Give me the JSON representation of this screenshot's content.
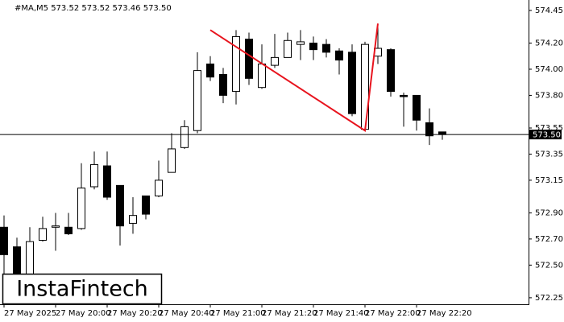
{
  "chart_data": {
    "type": "candlestick",
    "header": "#MA,M5  573.52 573.52 573.46 573.50",
    "logo": "InstaFintech",
    "categories": [
      "27 May 2025",
      null,
      null,
      null,
      "27 May 20:00",
      null,
      null,
      null,
      "27 May 20:20",
      null,
      null,
      null,
      "27 May 20:40",
      null,
      null,
      null,
      "27 May 21:00",
      null,
      null,
      null,
      "27 May 21:20",
      null,
      null,
      null,
      "27 May 21:40",
      null,
      null,
      null,
      "27 May 22:00",
      null,
      null,
      null,
      "27 May 22:20",
      null,
      null
    ],
    "open": [
      572.79,
      572.64,
      572.4,
      572.69,
      572.79,
      572.79,
      572.78,
      573.1,
      573.26,
      573.11,
      572.82,
      573.03,
      573.03,
      573.21,
      573.4,
      573.53,
      574.04,
      573.96,
      573.83,
      574.23,
      573.86,
      574.03,
      574.09,
      574.19,
      574.2,
      574.19,
      574.14,
      574.13,
      573.54,
      574.1,
      574.15,
      573.8,
      573.8,
      573.59,
      573.52
    ],
    "high": [
      572.88,
      572.71,
      572.79,
      572.87,
      572.9,
      572.9,
      573.28,
      573.37,
      573.37,
      573.11,
      573.02,
      573.03,
      573.3,
      573.51,
      573.61,
      574.13,
      574.1,
      574.01,
      574.3,
      574.28,
      574.19,
      574.27,
      574.28,
      574.3,
      574.25,
      574.23,
      574.16,
      574.19,
      574.21,
      574.33,
      574.16,
      573.82,
      573.8,
      573.7,
      573.52
    ],
    "low": [
      572.4,
      572.31,
      572.34,
      572.68,
      572.61,
      572.73,
      572.77,
      573.08,
      573.0,
      572.65,
      572.74,
      572.85,
      573.02,
      573.21,
      573.39,
      573.51,
      573.91,
      573.74,
      573.73,
      573.88,
      573.85,
      574.01,
      574.09,
      574.07,
      574.07,
      574.09,
      573.96,
      573.64,
      573.53,
      574.04,
      573.79,
      573.56,
      573.53,
      573.42,
      573.46
    ],
    "close": [
      572.58,
      572.4,
      572.68,
      572.78,
      572.8,
      572.74,
      573.09,
      573.27,
      573.02,
      572.8,
      572.88,
      572.89,
      573.15,
      573.39,
      573.56,
      573.99,
      573.94,
      573.8,
      574.25,
      573.93,
      574.04,
      574.09,
      574.22,
      574.21,
      574.15,
      574.13,
      574.07,
      573.66,
      574.19,
      574.16,
      573.83,
      573.79,
      573.61,
      573.49,
      573.5
    ],
    "up_color": "#ffffff",
    "down_color": "#000000",
    "ylim": [
      572.2,
      574.53
    ],
    "yticks": [
      {
        "value": 574.45,
        "label": "574.45"
      },
      {
        "value": 574.2,
        "label": "574.20"
      },
      {
        "value": 574.0,
        "label": "574.00"
      },
      {
        "value": 573.8,
        "label": "573.80"
      },
      {
        "value": 573.55,
        "label": "573.55"
      },
      {
        "value": 573.35,
        "label": "573.35"
      },
      {
        "value": 573.15,
        "label": "573.15"
      },
      {
        "value": 572.9,
        "label": "572.90"
      },
      {
        "value": 572.7,
        "label": "572.70"
      },
      {
        "value": 572.5,
        "label": "572.50"
      },
      {
        "value": 572.25,
        "label": "572.25"
      }
    ],
    "last_price": {
      "value": 573.5,
      "label": "573.50"
    },
    "pattern_line": {
      "color": "#e8141e",
      "x": [
        16,
        28,
        29
      ],
      "y": [
        574.3,
        573.53,
        574.35
      ]
    }
  }
}
